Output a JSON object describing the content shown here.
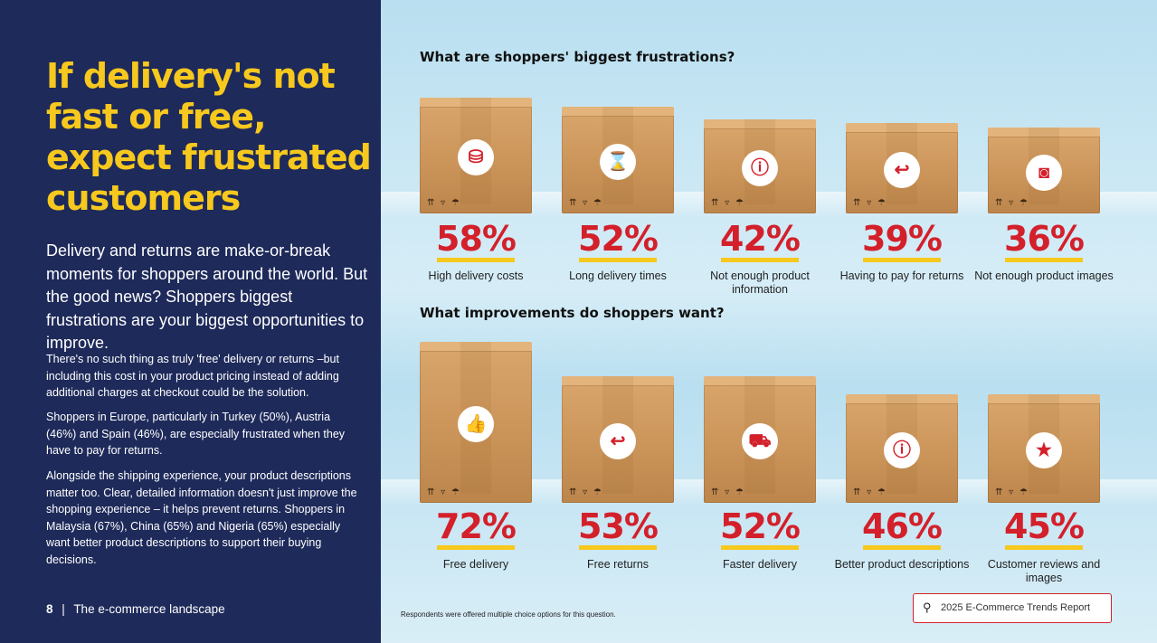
{
  "left": {
    "headline": "If delivery's not fast or free, expect frustrated customers",
    "intro": "Delivery and returns are make-or-break moments for shoppers around the world. But the good news? Shoppers biggest frustrations are your biggest opportunities to improve.",
    "paragraphs": [
      "There's no such thing as truly 'free' delivery or returns –but including this cost in your product pricing instead of adding additional charges at checkout could be the solution.",
      "Shoppers in Europe, particularly in Turkey (50%), Austria (46%) and Spain (46%), are especially frustrated when they have to pay for returns.",
      "Alongside the shipping experience, your product descriptions matter too. Clear, detailed information doesn't just improve the shopping experience – it helps prevent returns. Shoppers in Malaysia (67%), China (65%) and Nigeria (65%) especially want better product descriptions to support their buying decisions."
    ],
    "footer_page": "8",
    "footer_sep": "|",
    "footer_title": "The e-commerce landscape"
  },
  "frustrations": {
    "question": "What are shoppers' biggest frustrations?",
    "items": [
      {
        "pct": "58%",
        "label": "High delivery costs",
        "icon": "coins-icon",
        "glyph": "⛁"
      },
      {
        "pct": "52%",
        "label": "Long delivery times",
        "icon": "hourglass-icon",
        "glyph": "⌛"
      },
      {
        "pct": "42%",
        "label": "Not enough product information",
        "icon": "info-icon",
        "glyph": "ⓘ"
      },
      {
        "pct": "39%",
        "label": "Having to pay for returns",
        "icon": "return-arrow-icon",
        "glyph": "↩"
      },
      {
        "pct": "36%",
        "label": "Not enough product images",
        "icon": "camera-icon",
        "glyph": "◙"
      }
    ]
  },
  "improvements": {
    "question": "What improvements do shoppers want?",
    "items": [
      {
        "pct": "72%",
        "label": "Free delivery",
        "icon": "thumbs-up-icon",
        "glyph": "👍"
      },
      {
        "pct": "53%",
        "label": "Free returns",
        "icon": "return-arrow-icon",
        "glyph": "↩"
      },
      {
        "pct": "52%",
        "label": "Faster delivery",
        "icon": "delivery-truck-icon",
        "glyph": "⛟"
      },
      {
        "pct": "46%",
        "label": "Better product descriptions",
        "icon": "info-icon",
        "glyph": "ⓘ"
      },
      {
        "pct": "45%",
        "label": "Customer reviews and images",
        "icon": "camera-stars-icon",
        "glyph": "★"
      }
    ]
  },
  "box_symbols": "⇈ ▿ ☂",
  "note": "Respondents were offered multiple choice options for this question.",
  "report_button": "2025 E-Commerce Trends Report",
  "colors": {
    "navy": "#1e2a5a",
    "yellow": "#f7c81d",
    "red": "#d3202a"
  }
}
